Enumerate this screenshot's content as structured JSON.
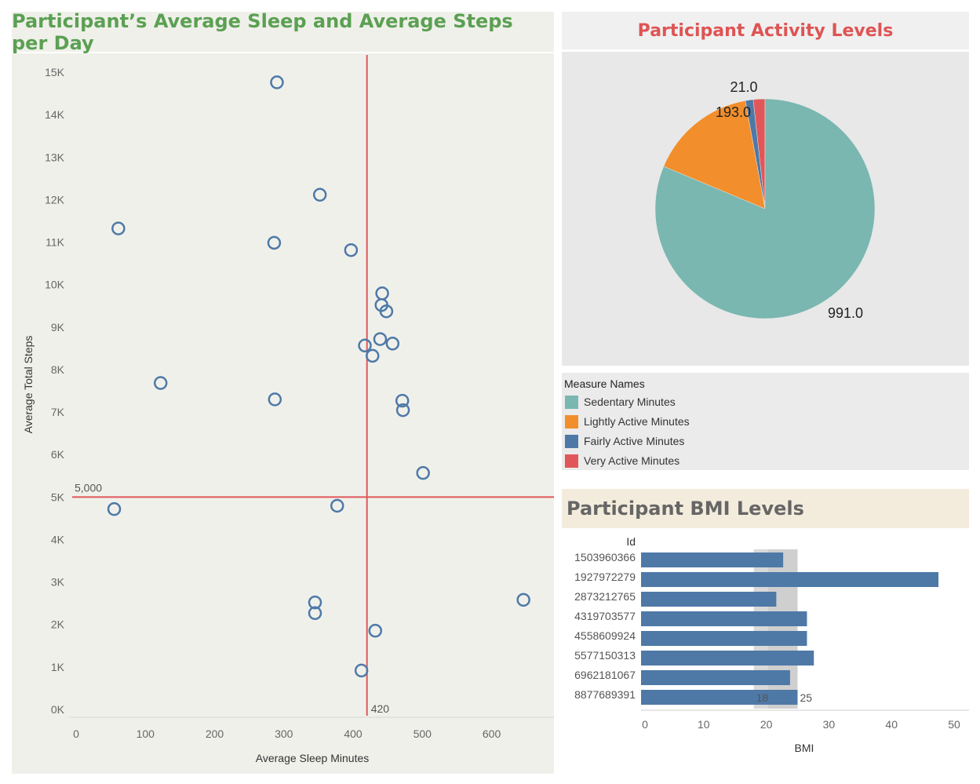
{
  "scatter": {
    "title": "Participant’s Average Sleep and Average Steps per Day",
    "title_color": "#5ba053",
    "xlabel": "Average Sleep Minutes",
    "ylabel": "Average Total Steps",
    "ref_x_label": "420",
    "ref_y_label": "5,000"
  },
  "pie": {
    "title": "Participant Activity Levels",
    "title_color": "#df5454"
  },
  "legend": {
    "title": "Measure Names",
    "items": [
      {
        "label": "Sedentary Minutes",
        "color": "#79b7b0"
      },
      {
        "label": "Lightly Active Minutes",
        "color": "#f28e2b"
      },
      {
        "label": "Fairly Active Minutes",
        "color": "#4e79a7"
      },
      {
        "label": "Very Active Minutes",
        "color": "#e15759"
      }
    ]
  },
  "bmi": {
    "title": "Participant BMI Levels",
    "id_header": "Id",
    "xlabel": "BMI"
  },
  "chart_data": [
    {
      "type": "scatter",
      "title": "Participant’s Average Sleep and Average Steps per Day",
      "xlabel": "Average Sleep Minutes",
      "ylabel": "Average Total Steps",
      "xlim": [
        0,
        690
      ],
      "ylim": [
        0,
        15500
      ],
      "x_ticks": [
        0,
        100,
        200,
        300,
        400,
        500,
        600
      ],
      "x_tick_labels": [
        "0",
        "100",
        "200",
        "300",
        "400",
        "500",
        "600"
      ],
      "y_ticks": [
        0,
        1000,
        2000,
        3000,
        4000,
        5000,
        6000,
        7000,
        8000,
        9000,
        10000,
        11000,
        12000,
        13000,
        14000,
        15000
      ],
      "y_tick_labels": [
        "0K",
        "1K",
        "2K",
        "3K",
        "4K",
        "5K",
        "6K",
        "7K",
        "8K",
        "9K",
        "10K",
        "11K",
        "12K",
        "13K",
        "14K",
        "15K"
      ],
      "reference_lines": [
        {
          "axis": "x",
          "value": 420,
          "label": "420",
          "color": "#e15759"
        },
        {
          "axis": "y",
          "value": 5000,
          "label": "5,000",
          "color": "#e15759"
        }
      ],
      "marker_color": "#4e79a7",
      "points": [
        {
          "x": 290,
          "y": 14763
        },
        {
          "x": 352,
          "y": 12116
        },
        {
          "x": 61,
          "y": 11323
        },
        {
          "x": 286,
          "y": 10985
        },
        {
          "x": 397,
          "y": 10813
        },
        {
          "x": 442,
          "y": 9795
        },
        {
          "x": 441,
          "y": 9520
        },
        {
          "x": 448,
          "y": 9372
        },
        {
          "x": 439,
          "y": 8718
        },
        {
          "x": 457,
          "y": 8613
        },
        {
          "x": 417,
          "y": 8567
        },
        {
          "x": 428,
          "y": 8325
        },
        {
          "x": 122,
          "y": 7685
        },
        {
          "x": 287,
          "y": 7299
        },
        {
          "x": 471,
          "y": 7268
        },
        {
          "x": 472,
          "y": 7046
        },
        {
          "x": 501,
          "y": 5567
        },
        {
          "x": 55,
          "y": 4717
        },
        {
          "x": 377,
          "y": 4795
        },
        {
          "x": 646,
          "y": 2580
        },
        {
          "x": 345,
          "y": 2519
        },
        {
          "x": 345,
          "y": 2267
        },
        {
          "x": 432,
          "y": 1854
        },
        {
          "x": 412,
          "y": 916
        }
      ],
      "grid": false
    },
    {
      "type": "pie",
      "title": "Participant Activity Levels",
      "series": [
        {
          "name": "Sedentary Minutes",
          "value": 991.0,
          "label": "991.0",
          "color": "#79b7b0"
        },
        {
          "name": "Lightly Active Minutes",
          "value": 193.0,
          "label": "193.0",
          "color": "#f28e2b"
        },
        {
          "name": "Fairly Active Minutes",
          "value": 14.0,
          "label": "",
          "color": "#4e79a7"
        },
        {
          "name": "Very Active Minutes",
          "value": 21.0,
          "label": "21.0",
          "color": "#e15759"
        }
      ],
      "legend_title": "Measure Names",
      "legend_position": "bottom"
    },
    {
      "type": "bar",
      "orientation": "horizontal",
      "title": "Participant BMI Levels",
      "ylabel": "Id",
      "xlabel": "BMI",
      "categories": [
        "1503960366",
        "1927972279",
        "2873212765",
        "4319703577",
        "4558609924",
        "5577150313",
        "6962181067",
        "8877689391"
      ],
      "values": [
        22.7,
        47.5,
        21.6,
        26.5,
        26.5,
        27.6,
        23.8,
        25.0
      ],
      "xlim": [
        0,
        51
      ],
      "x_ticks": [
        0,
        10,
        20,
        30,
        40,
        50
      ],
      "x_tick_labels": [
        "0",
        "10",
        "20",
        "30",
        "40",
        "50"
      ],
      "reference_band": {
        "from": 18,
        "to": 25,
        "labels": [
          "18",
          "25"
        ]
      },
      "color": "#4e79a7"
    }
  ]
}
